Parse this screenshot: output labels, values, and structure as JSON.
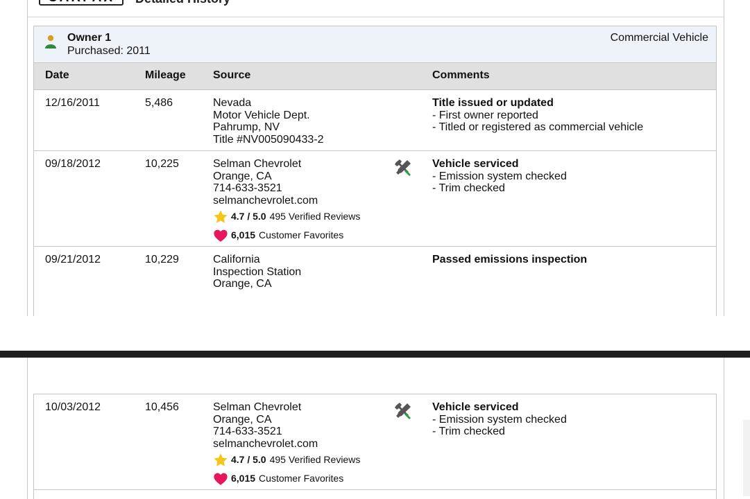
{
  "header": {
    "logo_text": "CARFAX",
    "title": "Detailed History"
  },
  "owner": {
    "name": "Owner 1",
    "purchased": "Purchased: 2011",
    "vehicle_type": "Commercial Vehicle",
    "icon": "person-icon"
  },
  "columns": [
    "Date",
    "Mileage",
    "Source",
    "Comments"
  ],
  "records": [
    {
      "date": "12/16/2011",
      "mileage": "5,486",
      "source": [
        "Nevada",
        "Motor Vehicle Dept.",
        "Pahrump, NV",
        "Title #NV005090433-2"
      ],
      "comment_title": "Title issued or updated",
      "comment_lines": [
        "- First owner reported",
        "- Titled or registered as commercial vehicle"
      ]
    },
    {
      "date": "09/18/2012",
      "mileage": "10,225",
      "source": [
        "Selman Chevrolet",
        "Orange, CA",
        "714-633-3521",
        "selmanchevrolet.com"
      ],
      "rating": "4.7 / 5.0",
      "reviews": "495 Verified Reviews",
      "favorites": "6,015",
      "favorites_label": "Customer Favorites",
      "service_icon": "wrench-screwdriver-icon",
      "comment_title": "Vehicle serviced",
      "comment_lines": [
        "- Emission system checked",
        "- Trim checked"
      ]
    },
    {
      "date": "09/21/2012",
      "mileage": "10,229",
      "source": [
        "California",
        "Inspection Station",
        "Orange, CA"
      ],
      "comment_title": "Passed emissions inspection",
      "comment_lines": []
    },
    {
      "date": "10/03/2012",
      "mileage": "10,456",
      "source": [
        "Selman Chevrolet",
        "Orange, CA",
        "714-633-3521",
        "selmanchevrolet.com"
      ],
      "rating": "4.7 / 5.0",
      "reviews": "495 Verified Reviews",
      "favorites": "6,015",
      "favorites_label": "Customer Favorites",
      "service_icon": "wrench-screwdriver-icon",
      "comment_title": "Vehicle serviced",
      "comment_lines": [
        "- Emission system checked",
        "- Trim checked"
      ]
    }
  ],
  "colors": {
    "owner_bar": "#eef3fa",
    "header_row": "#e0e0e0",
    "star": "#f5c518",
    "heart": "#e8175d",
    "tool_green": "#2e9e3e"
  }
}
